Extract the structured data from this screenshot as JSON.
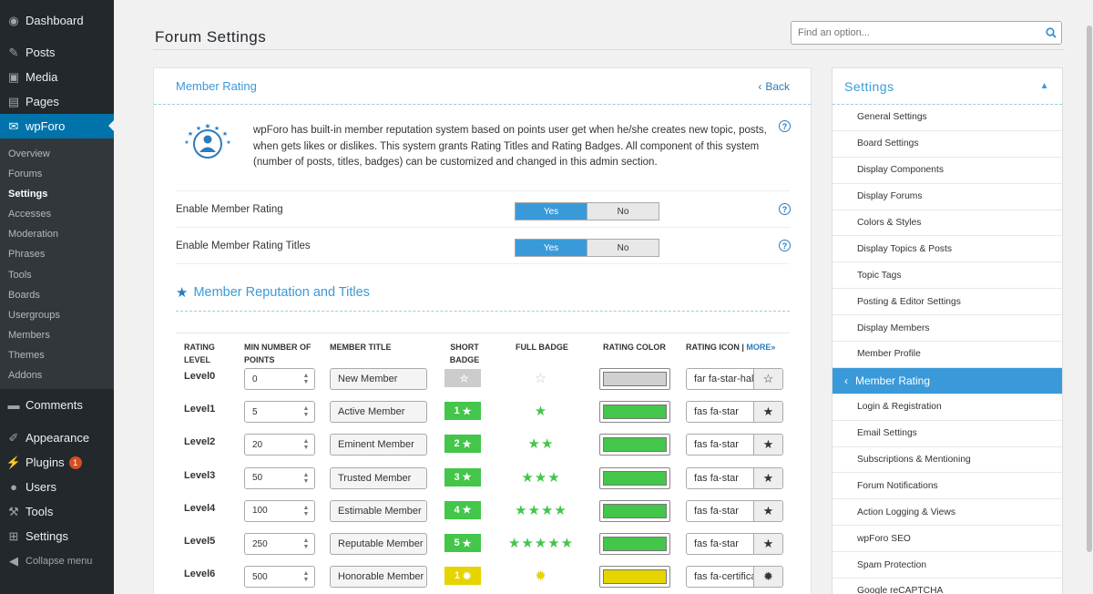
{
  "admin_menu": {
    "items_top": [
      {
        "name": "dashboard",
        "icon": "dashboard-icon",
        "glyph": "◉",
        "label": "Dashboard"
      },
      {
        "name": "posts",
        "icon": "pin-icon",
        "glyph": "✎",
        "label": "Posts"
      },
      {
        "name": "media",
        "icon": "media-icon",
        "glyph": "▣",
        "label": "Media"
      },
      {
        "name": "pages",
        "icon": "pages-icon",
        "glyph": "▤",
        "label": "Pages"
      }
    ],
    "wpforo": {
      "label": "wpForo",
      "icon": "forum-icon",
      "glyph": "✉"
    },
    "submenu": [
      "Overview",
      "Forums",
      "Settings",
      "Accesses",
      "Moderation",
      "Phrases",
      "Tools",
      "Boards",
      "Usergroups",
      "Members",
      "Themes",
      "Addons"
    ],
    "submenu_current": "Settings",
    "items_bottom": [
      {
        "name": "comments",
        "icon": "comments-icon",
        "glyph": "▬",
        "label": "Comments"
      },
      {
        "name": "appearance",
        "icon": "brush-icon",
        "glyph": "✐",
        "label": "Appearance"
      },
      {
        "name": "plugins",
        "icon": "plugin-icon",
        "glyph": "⚡",
        "label": "Plugins",
        "badge": "1"
      },
      {
        "name": "users",
        "icon": "user-icon",
        "glyph": "●",
        "label": "Users"
      },
      {
        "name": "tools",
        "icon": "wrench-icon",
        "glyph": "⚒",
        "label": "Tools"
      },
      {
        "name": "settings",
        "icon": "settings-icon",
        "glyph": "⊞",
        "label": "Settings"
      }
    ],
    "collapse": "Collapse menu"
  },
  "header": {
    "title": "Forum Settings",
    "search_placeholder": "Find an option..."
  },
  "main": {
    "title": "Member Rating",
    "back": "Back",
    "intro": "wpForo has built-in member reputation system based on points user get when he/she creates new topic, posts, when gets likes or dislikes. This system grants Rating Titles and Rating Badges. All component of this system (number of posts, titles, badges) can be customized and changed in this admin section.",
    "options": [
      {
        "label": "Enable Member Rating",
        "yes": "Yes",
        "no": "No",
        "value": "Yes"
      },
      {
        "label": "Enable Member Rating Titles",
        "yes": "Yes",
        "no": "No",
        "value": "Yes"
      }
    ],
    "section_title": "Member Reputation and Titles",
    "columns": {
      "level": "RATING LEVEL",
      "points": "MIN NUMBER OF POINTS",
      "title": "MEMBER TITLE",
      "short": "SHORT BADGE",
      "full": "FULL BADGE",
      "color": "RATING COLOR",
      "icon": "RATING ICON",
      "more": "MORE»"
    },
    "levels": [
      {
        "level": "Level0",
        "points": "0",
        "title": "New Member",
        "short_num": "",
        "short_glyph": "☆",
        "short_bg": "#cccccc",
        "full": "☆",
        "full_color": "#c9c9c9",
        "color": "#d0d0d0",
        "icon": "far fa-star-half",
        "icon_glyph": "☆"
      },
      {
        "level": "Level1",
        "points": "5",
        "title": "Active Member",
        "short_num": "1",
        "short_glyph": "★",
        "short_bg": "#43c64a",
        "full": "★",
        "full_color": "#43c64a",
        "color": "#43c64a",
        "icon": "fas fa-star",
        "icon_glyph": "★"
      },
      {
        "level": "Level2",
        "points": "20",
        "title": "Eminent Member",
        "short_num": "2",
        "short_glyph": "★",
        "short_bg": "#43c64a",
        "full": "★★",
        "full_color": "#43c64a",
        "color": "#43c64a",
        "icon": "fas fa-star",
        "icon_glyph": "★"
      },
      {
        "level": "Level3",
        "points": "50",
        "title": "Trusted Member",
        "short_num": "3",
        "short_glyph": "★",
        "short_bg": "#43c64a",
        "full": "★★★",
        "full_color": "#43c64a",
        "color": "#43c64a",
        "icon": "fas fa-star",
        "icon_glyph": "★"
      },
      {
        "level": "Level4",
        "points": "100",
        "title": "Estimable Member",
        "short_num": "4",
        "short_glyph": "★",
        "short_bg": "#43c64a",
        "full": "★★★★",
        "full_color": "#43c64a",
        "color": "#43c64a",
        "icon": "fas fa-star",
        "icon_glyph": "★"
      },
      {
        "level": "Level5",
        "points": "250",
        "title": "Reputable Member",
        "short_num": "5",
        "short_glyph": "★",
        "short_bg": "#43c64a",
        "full": "★★★★★",
        "full_color": "#43c64a",
        "color": "#43c64a",
        "icon": "fas fa-star",
        "icon_glyph": "★"
      },
      {
        "level": "Level6",
        "points": "500",
        "title": "Honorable Member",
        "short_num": "1",
        "short_glyph": "✹",
        "short_bg": "#e6d400",
        "full": "✹",
        "full_color": "#e6d400",
        "color": "#e6d400",
        "icon": "fas fa-certificate",
        "icon_glyph": "✹"
      }
    ]
  },
  "settings_panel": {
    "title": "Settings",
    "items": [
      "General Settings",
      "Board Settings",
      "Display Components",
      "Display Forums",
      "Colors & Styles",
      "Display Topics & Posts",
      "Topic Tags",
      "Posting & Editor Settings",
      "Display Members",
      "Member Profile",
      "Member Rating",
      "Login & Registration",
      "Email Settings",
      "Subscriptions & Mentioning",
      "Forum Notifications",
      "Action Logging & Views",
      "wpForo SEO",
      "Spam Protection",
      "Google reCAPTCHA"
    ],
    "active": "Member Rating"
  }
}
